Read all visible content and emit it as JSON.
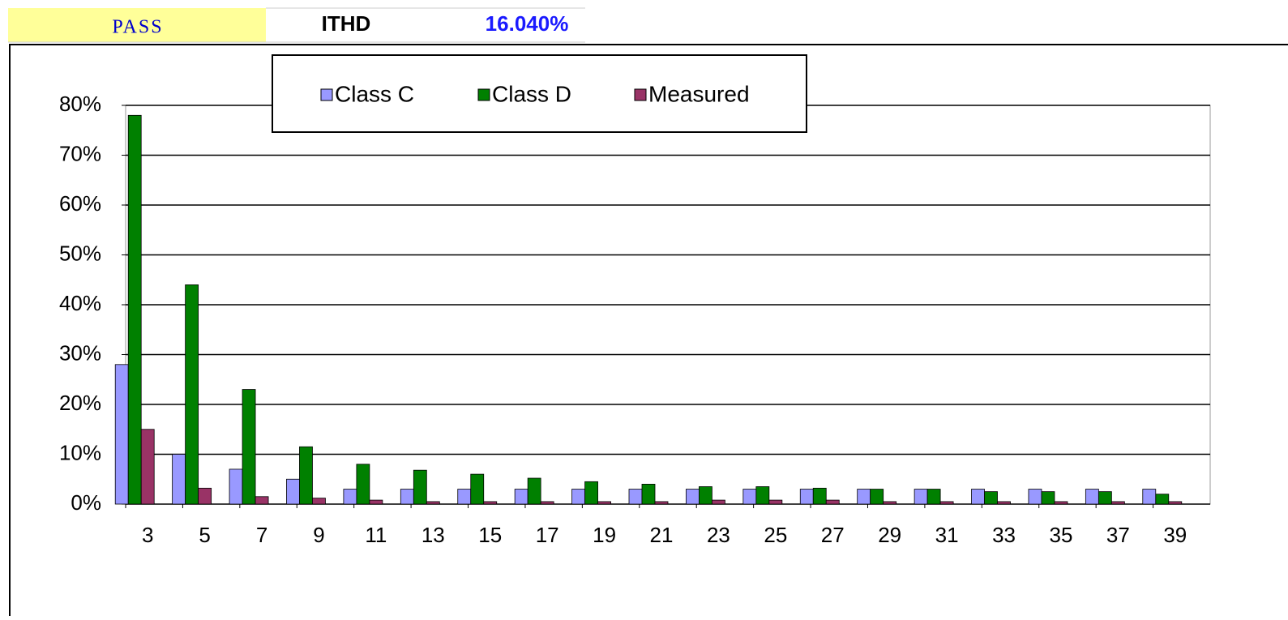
{
  "header": {
    "status": "PASS",
    "metric": "ITHD",
    "metric_value": "16.040%"
  },
  "chart_data": {
    "type": "bar",
    "categories": [
      "3",
      "5",
      "7",
      "9",
      "11",
      "13",
      "15",
      "17",
      "19",
      "21",
      "23",
      "25",
      "27",
      "29",
      "31",
      "33",
      "35",
      "37",
      "39"
    ],
    "series": [
      {
        "name": "Class C",
        "color": "#9999ff",
        "values": [
          28,
          10,
          7,
          5,
          3,
          3,
          3,
          3,
          3,
          3,
          3,
          3,
          3,
          3,
          3,
          3,
          3,
          3,
          3
        ]
      },
      {
        "name": "Class D",
        "color": "#008000",
        "values": [
          78,
          44,
          23,
          11.5,
          8,
          6.8,
          6,
          5.2,
          4.5,
          4,
          3.5,
          3.5,
          3.2,
          3,
          3,
          2.5,
          2.5,
          2.5,
          2
        ]
      },
      {
        "name": "Measured",
        "color": "#993366",
        "values": [
          15,
          3.2,
          1.5,
          1.2,
          0.8,
          0.5,
          0.5,
          0.5,
          0.5,
          0.5,
          0.8,
          0.8,
          0.8,
          0.5,
          0.5,
          0.5,
          0.5,
          0.5,
          0.5
        ]
      }
    ],
    "ylim": [
      0,
      80
    ],
    "yticks": [
      {
        "value": 0,
        "label": "0%"
      },
      {
        "value": 10,
        "label": "10%"
      },
      {
        "value": 20,
        "label": "20%"
      },
      {
        "value": 30,
        "label": "30%"
      },
      {
        "value": 40,
        "label": "40%"
      },
      {
        "value": 50,
        "label": "50%"
      },
      {
        "value": 60,
        "label": "60%"
      },
      {
        "value": 70,
        "label": "70%"
      },
      {
        "value": 80,
        "label": "80%"
      }
    ],
    "grid": true,
    "legend": "top"
  }
}
